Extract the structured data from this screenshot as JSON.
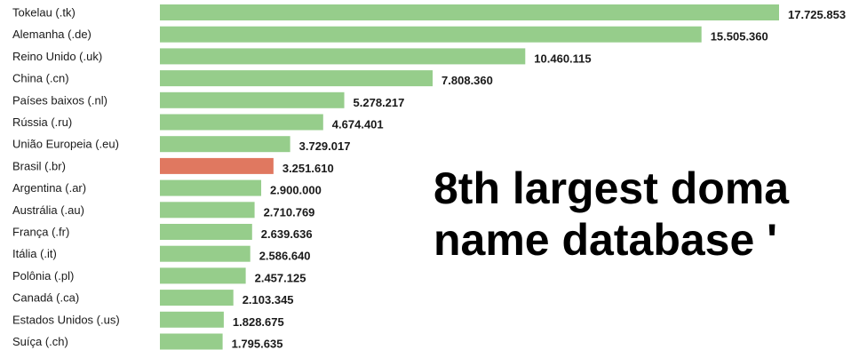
{
  "chart_data": {
    "type": "bar",
    "orientation": "horizontal",
    "categories": [
      "Tokelau (.tk)",
      "Alemanha (.de)",
      "Reino Unido (.uk)",
      "China (.cn)",
      "Países baixos (.nl)",
      "Rússia (.ru)",
      "União Europeia (.eu)",
      "Brasil (.br)",
      "Argentina (.ar)",
      "Austrália (.au)",
      "França (.fr)",
      "Itália (.it)",
      "Polônia (.pl)",
      "Canadá (.ca)",
      "Estados Unidos (.us)",
      "Suíça (.ch)"
    ],
    "values": [
      17725853,
      15505360,
      10460115,
      7808360,
      5278217,
      4674401,
      3729017,
      3251610,
      2900000,
      2710769,
      2639636,
      2586640,
      2457125,
      2103345,
      1828675,
      1795635
    ],
    "value_labels": [
      "17.725.853",
      "15.505.360",
      "10.460.115",
      "7.808.360",
      "5.278.217",
      "4.674.401",
      "3.729.017",
      "3.251.610",
      "2.900.000",
      "2.710.769",
      "2.639.636",
      "2.586.640",
      "2.457.125",
      "2.103.345",
      "1.828.675",
      "1.795.635"
    ],
    "highlight_index": 7,
    "colors": {
      "bar": "#96cd8b",
      "highlight": "#e07860"
    },
    "grid": false,
    "legend": "none"
  },
  "headline": {
    "line1": "8th largest doma",
    "line2": "name database '"
  }
}
